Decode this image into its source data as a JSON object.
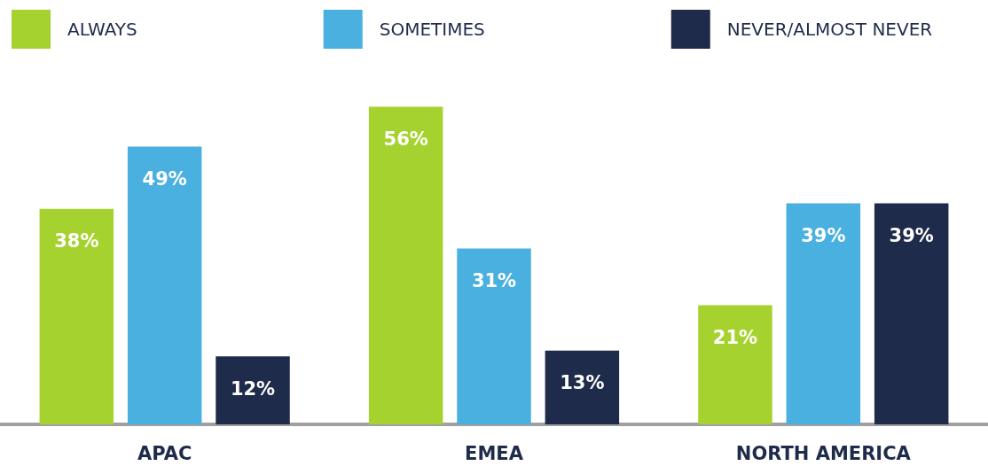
{
  "chart_data": {
    "type": "bar",
    "categories": [
      "APAC",
      "EMEA",
      "NORTH AMERICA"
    ],
    "legend": "top",
    "series": [
      {
        "name": "ALWAYS",
        "color": "#a6d22f",
        "values": [
          38,
          56,
          21
        ],
        "value_labels": [
          "38%",
          "56%",
          "21%"
        ]
      },
      {
        "name": "SOMETIMES",
        "color": "#4ab0e0",
        "values": [
          49,
          31,
          39
        ],
        "value_labels": [
          "49%",
          "31%",
          "39%"
        ]
      },
      {
        "name": "NEVER/ALMOST NEVER",
        "color": "#1f2b4a",
        "values": [
          12,
          13,
          39
        ],
        "value_labels": [
          "12%",
          "13%",
          "39%"
        ]
      }
    ]
  }
}
